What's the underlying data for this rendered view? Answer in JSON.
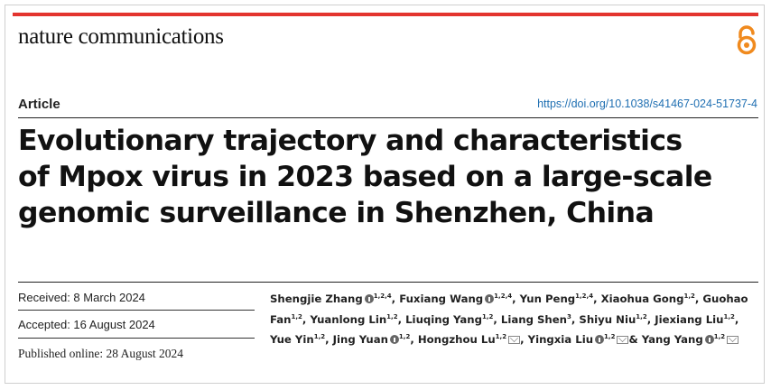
{
  "journal": "nature communications",
  "article_label": "Article",
  "doi": "https://doi.org/10.1038/s41467-024-51737-4",
  "title_lines": [
    "Evolutionary trajectory and characteristics",
    "of Mpox virus in 2023 based on a large-scale",
    "genomic surveillance in Shenzhen, China"
  ],
  "dates": {
    "received": "Received: 8 March 2024",
    "accepted": "Accepted: 16 August 2024",
    "published": "Published online: 28 August 2024"
  },
  "authors": [
    {
      "name": "Shengjie Zhang",
      "orcid": true,
      "aff": "1,2,4",
      "mail": false,
      "sep": ","
    },
    {
      "name": "Fuxiang Wang",
      "orcid": true,
      "aff": "1,2,4",
      "mail": false,
      "sep": ","
    },
    {
      "name": "Yun Peng",
      "orcid": false,
      "aff": "1,2,4",
      "mail": false,
      "sep": ","
    },
    {
      "name": "Xiaohua Gong",
      "orcid": false,
      "aff": "1,2",
      "mail": false,
      "sep": ","
    },
    {
      "name": "Guohao Fan",
      "orcid": false,
      "aff": "1,2",
      "mail": false,
      "sep": ","
    },
    {
      "name": "Yuanlong Lin",
      "orcid": false,
      "aff": "1,2",
      "mail": false,
      "sep": ","
    },
    {
      "name": "Liuqing Yang",
      "orcid": false,
      "aff": "1,2",
      "mail": false,
      "sep": ","
    },
    {
      "name": "Liang Shen",
      "orcid": false,
      "aff": "3",
      "mail": false,
      "sep": ","
    },
    {
      "name": "Shiyu Niu",
      "orcid": false,
      "aff": "1,2",
      "mail": false,
      "sep": ","
    },
    {
      "name": "Jiexiang Liu",
      "orcid": false,
      "aff": "1,2",
      "mail": false,
      "sep": ","
    },
    {
      "name": "Yue Yin",
      "orcid": false,
      "aff": "1,2",
      "mail": false,
      "sep": ","
    },
    {
      "name": "Jing Yuan",
      "orcid": true,
      "aff": "1,2",
      "mail": false,
      "sep": ","
    },
    {
      "name": "Hongzhou Lu",
      "orcid": false,
      "aff": "1,2",
      "mail": true,
      "sep": ","
    },
    {
      "name": "Yingxia Liu",
      "orcid": true,
      "aff": "1,2",
      "mail": true,
      "sep": "&"
    },
    {
      "name": "Yang Yang",
      "orcid": true,
      "aff": "1,2",
      "mail": true,
      "sep": ""
    }
  ],
  "colors": {
    "accent_bar": "#e3342f",
    "link": "#1f6fb2",
    "open_access": "#f08a1e"
  },
  "icons": {
    "open_access": "open-access-icon",
    "orcid": "orcid-icon",
    "mail": "mail-icon"
  }
}
